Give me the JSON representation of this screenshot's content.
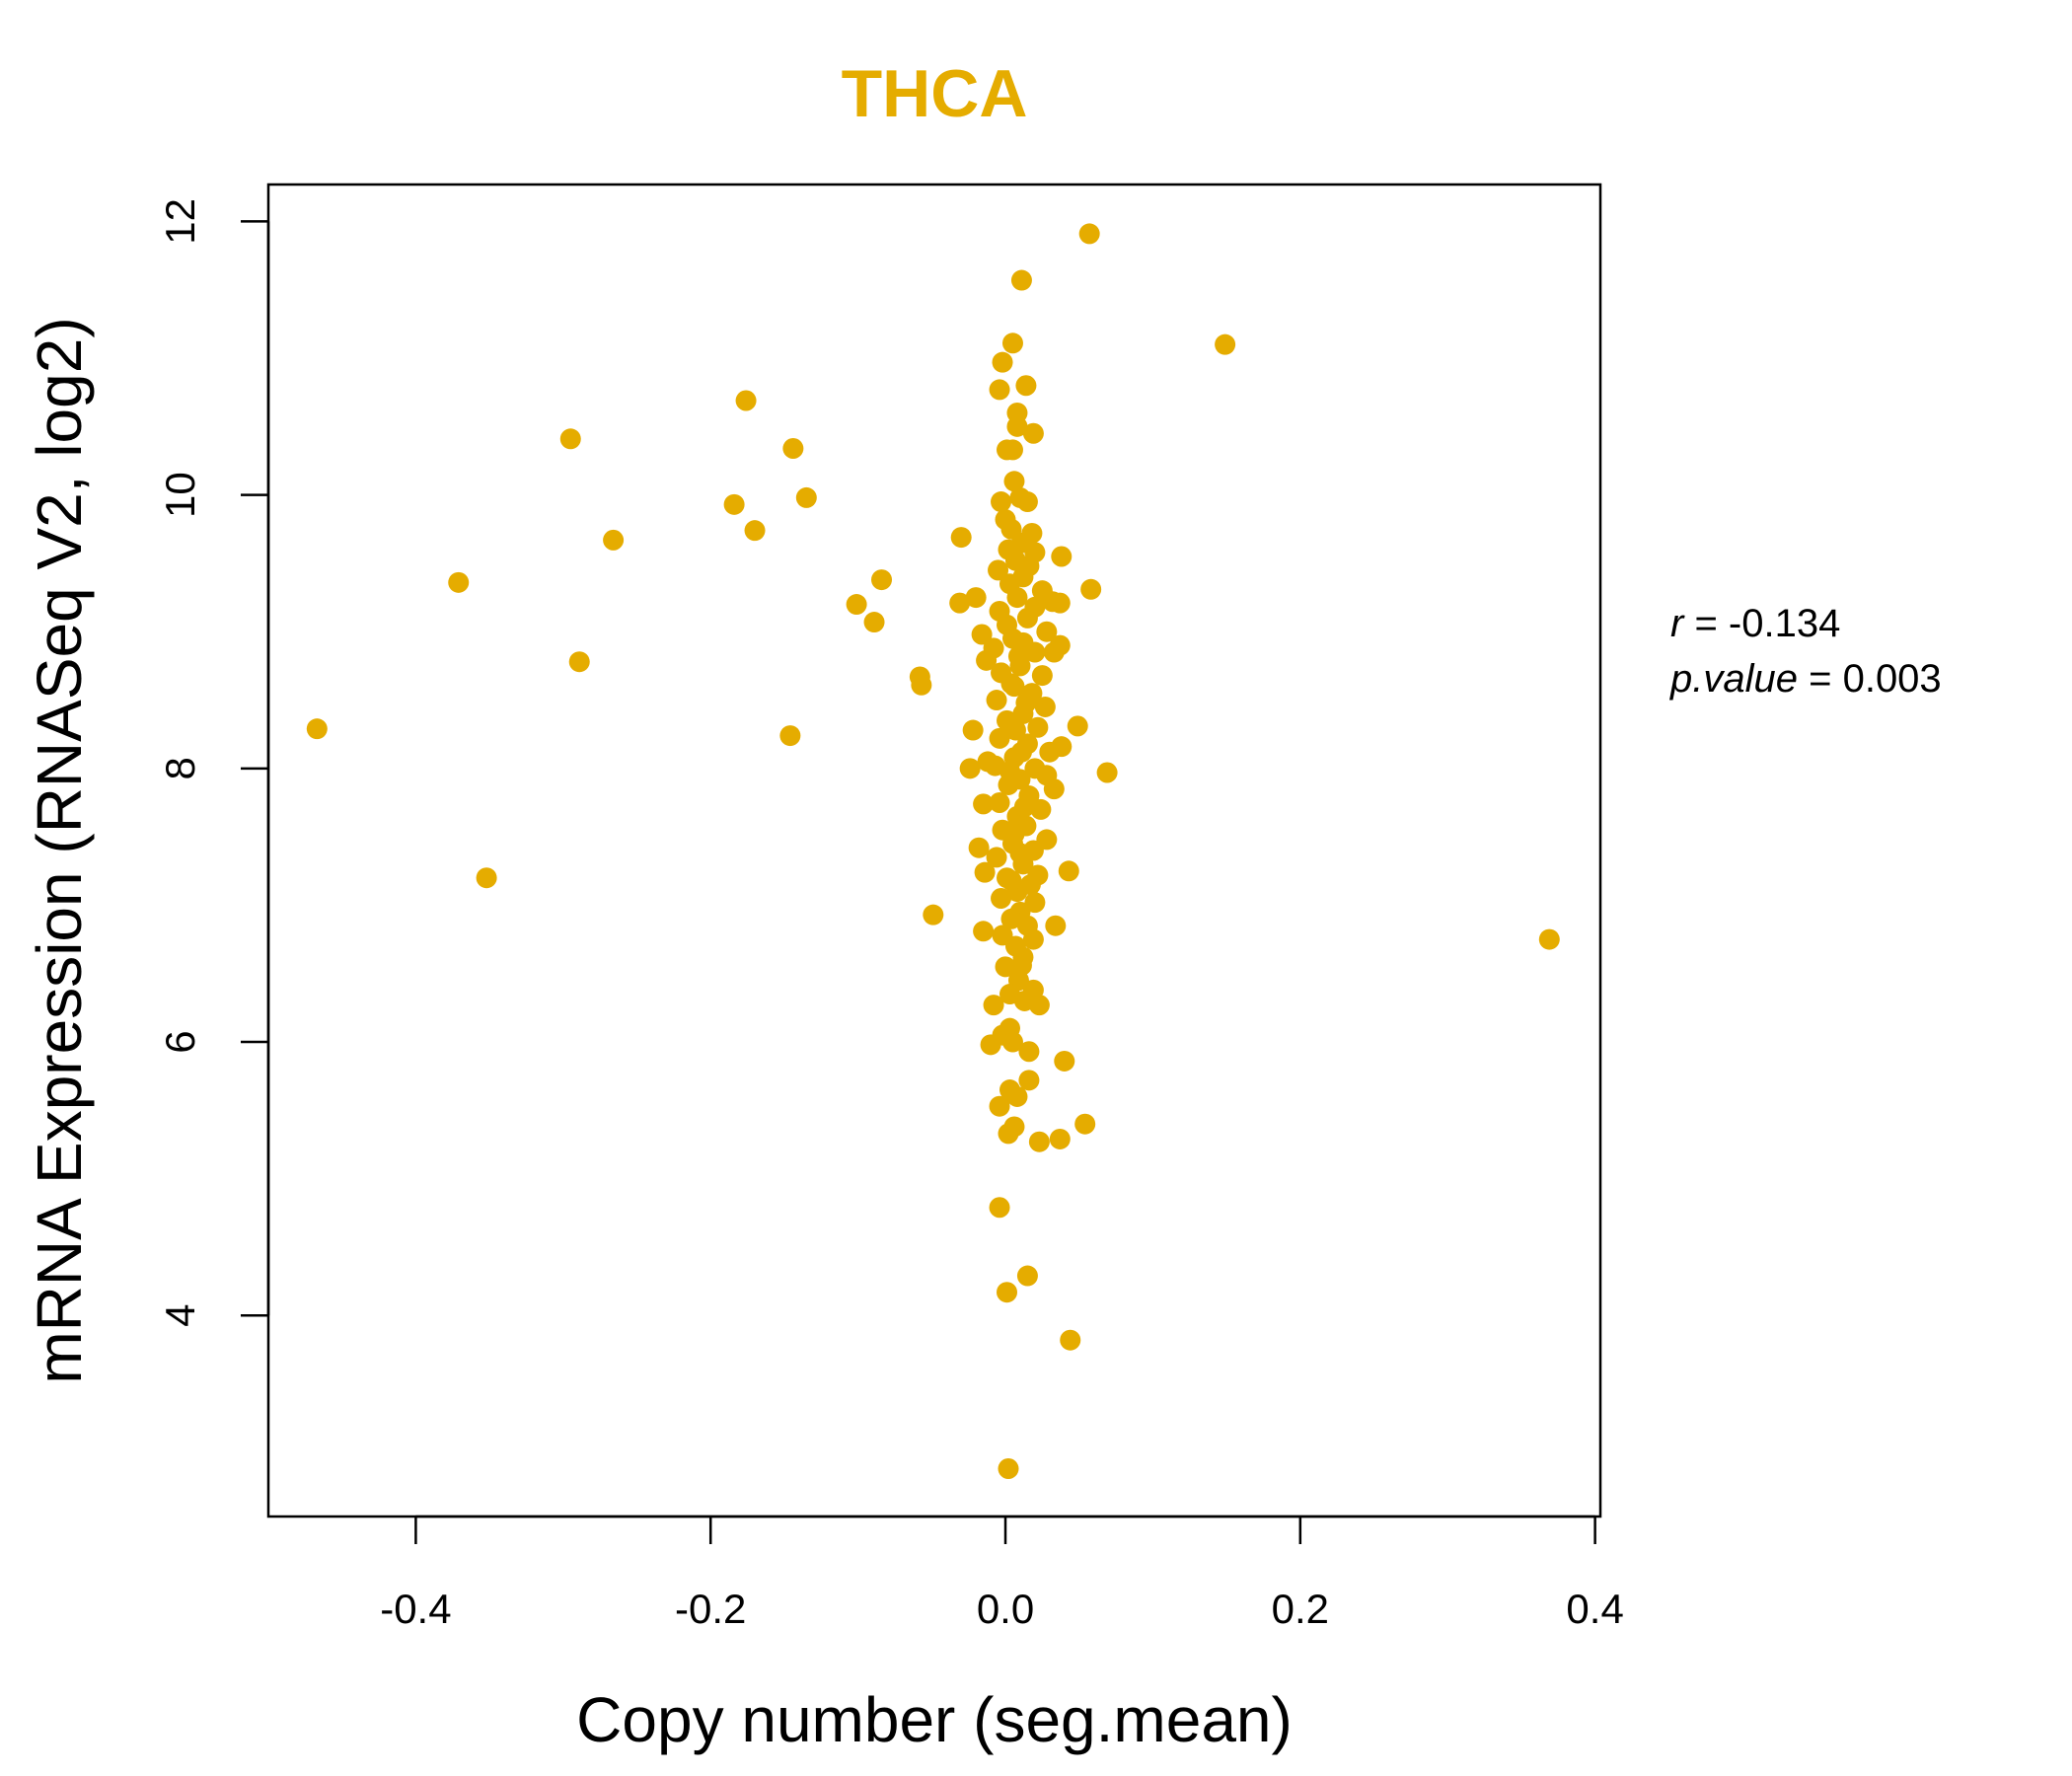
{
  "chart_data": {
    "type": "scatter",
    "title": "THCA",
    "xlabel": "Copy number (seg.mean)",
    "ylabel": "mRNA Expression (RNASeq V2, log2)",
    "xlim": [
      -0.5,
      0.4036
    ],
    "ylim": [
      2.53,
      12.27
    ],
    "xticks": [
      -0.4,
      -0.2,
      0.0,
      0.2,
      0.4
    ],
    "xtick_labels": [
      "-0.4",
      "-0.2",
      "0.0",
      "0.2",
      "0.4"
    ],
    "yticks": [
      4,
      6,
      8,
      10,
      12
    ],
    "ytick_labels": [
      "4",
      "6",
      "8",
      "10",
      "12"
    ],
    "grid": false,
    "color": "#E5AC00",
    "stats": {
      "r_label": "r",
      "r_value": "-0.134",
      "p_label": "p.value",
      "p_value": "0.003"
    },
    "points": [
      [
        -0.467,
        8.29
      ],
      [
        -0.371,
        9.36
      ],
      [
        -0.352,
        7.2
      ],
      [
        -0.295,
        10.41
      ],
      [
        -0.289,
        8.78
      ],
      [
        -0.266,
        9.67
      ],
      [
        -0.176,
        10.69
      ],
      [
        -0.184,
        9.93
      ],
      [
        -0.17,
        9.74
      ],
      [
        -0.144,
        10.34
      ],
      [
        -0.146,
        8.24
      ],
      [
        -0.135,
        9.98
      ],
      [
        -0.101,
        9.2
      ],
      [
        -0.089,
        9.07
      ],
      [
        -0.084,
        9.38
      ],
      [
        -0.058,
        8.67
      ],
      [
        -0.057,
        8.61
      ],
      [
        -0.049,
        6.93
      ],
      [
        -0.03,
        9.69
      ],
      [
        -0.031,
        9.21
      ],
      [
        -0.022,
        8.28
      ],
      [
        -0.024,
        8.0
      ],
      [
        -0.015,
        7.74
      ],
      [
        -0.018,
        7.42
      ],
      [
        -0.015,
        6.81
      ],
      [
        -0.014,
        7.24
      ],
      [
        -0.02,
        9.25
      ],
      [
        -0.016,
        8.98
      ],
      [
        -0.013,
        8.79
      ],
      [
        -0.012,
        8.05
      ],
      [
        0.011,
        11.57
      ],
      [
        0.057,
        11.91
      ],
      [
        0.149,
        11.1
      ],
      [
        0.005,
        11.11
      ],
      [
        -0.002,
        10.97
      ],
      [
        0.014,
        10.8
      ],
      [
        -0.004,
        10.77
      ],
      [
        0.008,
        10.6
      ],
      [
        0.008,
        10.5
      ],
      [
        0.019,
        10.45
      ],
      [
        0.001,
        10.33
      ],
      [
        0.005,
        10.33
      ],
      [
        0.006,
        10.1
      ],
      [
        0.01,
        9.98
      ],
      [
        0.038,
        9.55
      ],
      [
        0.058,
        9.31
      ],
      [
        0.037,
        9.21
      ],
      [
        0.037,
        8.9
      ],
      [
        0.049,
        8.31
      ],
      [
        0.038,
        8.16
      ],
      [
        0.069,
        7.97
      ],
      [
        0.043,
        7.25
      ],
      [
        0.034,
        6.85
      ],
      [
        0.369,
        6.75
      ],
      [
        0.04,
        5.86
      ],
      [
        0.054,
        5.4
      ],
      [
        0.037,
        5.29
      ],
      [
        0.023,
        5.27
      ],
      [
        -0.004,
        4.79
      ],
      [
        0.015,
        4.29
      ],
      [
        0.001,
        4.17
      ],
      [
        0.044,
        3.82
      ],
      [
        0.002,
        2.88
      ],
      [
        0.016,
        5.72
      ],
      [
        0.008,
        5.6
      ],
      [
        0.003,
        5.65
      ],
      [
        -0.004,
        5.53
      ],
      [
        0.006,
        5.38
      ],
      [
        0.002,
        5.33
      ],
      [
        -0.01,
        5.98
      ],
      [
        0.016,
        5.93
      ],
      [
        0.023,
        6.27
      ],
      [
        0.019,
        6.38
      ],
      [
        0.011,
        6.56
      ],
      [
        -0.008,
        6.27
      ],
      [
        0.003,
        6.1
      ],
      [
        -0.002,
        6.05
      ],
      [
        0.005,
        6.0
      ],
      [
        -0.003,
        9.95
      ],
      [
        0.0,
        9.82
      ],
      [
        0.015,
        9.95
      ],
      [
        0.018,
        9.72
      ],
      [
        0.02,
        9.58
      ],
      [
        0.002,
        9.6
      ],
      [
        -0.005,
        9.45
      ],
      [
        0.012,
        9.4
      ],
      [
        0.025,
        9.3
      ],
      [
        0.032,
        9.22
      ],
      [
        0.008,
        9.25
      ],
      [
        -0.004,
        9.15
      ],
      [
        0.015,
        9.1
      ],
      [
        0.028,
        9.0
      ],
      [
        0.005,
        8.95
      ],
      [
        -0.008,
        8.88
      ],
      [
        0.02,
        8.85
      ],
      [
        0.033,
        8.85
      ],
      [
        0.01,
        8.75
      ],
      [
        -0.003,
        8.7
      ],
      [
        0.025,
        8.68
      ],
      [
        0.006,
        8.6
      ],
      [
        0.018,
        8.55
      ],
      [
        -0.006,
        8.5
      ],
      [
        0.027,
        8.45
      ],
      [
        0.012,
        8.4
      ],
      [
        0.001,
        8.35
      ],
      [
        0.022,
        8.3
      ],
      [
        -0.004,
        8.22
      ],
      [
        0.015,
        8.18
      ],
      [
        0.03,
        8.12
      ],
      [
        0.006,
        8.08
      ],
      [
        -0.007,
        8.02
      ],
      [
        0.02,
        8.0
      ],
      [
        0.028,
        7.95
      ],
      [
        0.01,
        7.92
      ],
      [
        0.002,
        7.88
      ],
      [
        0.033,
        7.85
      ],
      [
        0.016,
        7.8
      ],
      [
        -0.004,
        7.75
      ],
      [
        0.024,
        7.7
      ],
      [
        0.008,
        7.65
      ],
      [
        0.014,
        7.58
      ],
      [
        -0.002,
        7.55
      ],
      [
        0.028,
        7.48
      ],
      [
        0.005,
        7.45
      ],
      [
        0.019,
        7.4
      ],
      [
        -0.006,
        7.35
      ],
      [
        0.012,
        7.3
      ],
      [
        0.022,
        7.22
      ],
      [
        0.001,
        7.2
      ],
      [
        0.017,
        7.15
      ],
      [
        0.008,
        7.1
      ],
      [
        -0.003,
        7.05
      ],
      [
        0.02,
        7.02
      ],
      [
        0.01,
        6.95
      ],
      [
        0.004,
        6.9
      ],
      [
        0.015,
        6.85
      ],
      [
        -0.002,
        6.78
      ],
      [
        0.019,
        6.75
      ],
      [
        0.007,
        6.7
      ],
      [
        0.012,
        6.62
      ],
      [
        0.0,
        6.55
      ],
      [
        0.009,
        6.45
      ],
      [
        0.003,
        6.35
      ],
      [
        0.013,
        6.3
      ],
      [
        0.004,
        9.75
      ],
      [
        0.011,
        9.65
      ],
      [
        0.007,
        9.52
      ],
      [
        0.016,
        9.48
      ],
      [
        0.003,
        9.35
      ],
      [
        0.02,
        9.18
      ],
      [
        0.001,
        9.05
      ],
      [
        0.012,
        8.92
      ],
      [
        0.009,
        8.82
      ],
      [
        0.004,
        8.62
      ],
      [
        0.014,
        8.48
      ],
      [
        0.007,
        8.28
      ],
      [
        0.011,
        8.12
      ],
      [
        0.003,
        7.98
      ],
      [
        0.013,
        7.72
      ],
      [
        0.006,
        7.52
      ],
      [
        0.01,
        7.38
      ],
      [
        0.004,
        7.18
      ]
    ]
  }
}
